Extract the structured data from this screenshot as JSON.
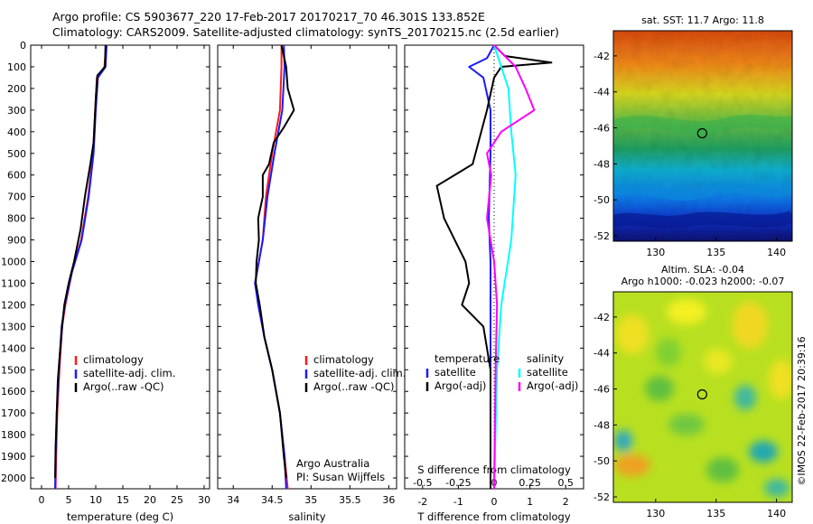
{
  "title_line1": "Argo profile: CS 5903677_220 17-Feb-2017 20170217_70 46.301S 133.852E",
  "title_line2": "Climatology: CARS2009. Satellite-adjusted climatology: synTS_20170215.nc (2.5d earlier)",
  "colors": {
    "climatology": "#ff1a1a",
    "satellite": "#1a1aff",
    "argo": "#000000",
    "sat_salinity": "#00ffff",
    "argo_salinity": "#ff00ff"
  },
  "chart_data": [
    {
      "type": "line",
      "panel": "temperature",
      "xlabel": "temperature (deg C)",
      "xlim": [
        -2,
        31
      ],
      "xticks": [
        "0",
        "5",
        "10",
        "15",
        "20",
        "25",
        "30"
      ],
      "ylim": [
        0,
        2050
      ],
      "yticks": [
        "0",
        "100",
        "200",
        "300",
        "400",
        "500",
        "600",
        "700",
        "800",
        "900",
        "1000",
        "1100",
        "1200",
        "1300",
        "1400",
        "1500",
        "1600",
        "1700",
        "1800",
        "1900",
        "2000"
      ],
      "legend": [
        "climatology",
        "satellite-adj. clim.",
        "Argo(..raw -QC)"
      ],
      "series": [
        {
          "name": "climatology",
          "points": [
            [
              11.9,
              0
            ],
            [
              11.6,
              100
            ],
            [
              10.2,
              150
            ],
            [
              9.9,
              300
            ],
            [
              9.5,
              500
            ],
            [
              8.6,
              700
            ],
            [
              7.3,
              900
            ],
            [
              5.6,
              1050
            ],
            [
              4.4,
              1200
            ],
            [
              3.8,
              1300
            ],
            [
              3.3,
              1500
            ],
            [
              2.9,
              1700
            ],
            [
              2.7,
              1900
            ],
            [
              2.6,
              2050
            ]
          ]
        },
        {
          "name": "satellite-adj. clim.",
          "points": [
            [
              12.0,
              0
            ],
            [
              11.8,
              100
            ],
            [
              10.4,
              150
            ],
            [
              10.0,
              300
            ],
            [
              9.6,
              500
            ],
            [
              8.7,
              700
            ],
            [
              7.4,
              900
            ],
            [
              5.6,
              1050
            ],
            [
              4.3,
              1200
            ],
            [
              3.7,
              1300
            ],
            [
              3.2,
              1500
            ],
            [
              2.8,
              1700
            ],
            [
              2.6,
              1900
            ],
            [
              2.5,
              2050
            ]
          ]
        },
        {
          "name": "Argo(..raw -QC)",
          "points": [
            [
              11.8,
              0
            ],
            [
              11.7,
              100
            ],
            [
              10.3,
              140
            ],
            [
              10.0,
              250
            ],
            [
              9.9,
              300
            ],
            [
              9.6,
              450
            ],
            [
              9.0,
              550
            ],
            [
              8.0,
              700
            ],
            [
              7.2,
              850
            ],
            [
              6.0,
              1000
            ],
            [
              5.0,
              1100
            ],
            [
              4.2,
              1200
            ],
            [
              3.8,
              1300
            ],
            [
              3.3,
              1450
            ],
            [
              3.0,
              1550
            ],
            [
              2.8,
              1700
            ],
            [
              2.6,
              1850
            ],
            [
              2.5,
              2000
            ]
          ]
        }
      ]
    },
    {
      "type": "line",
      "panel": "salinity",
      "xlabel": "salinity",
      "xlim": [
        33.8,
        36.1
      ],
      "xticks": [
        "34",
        "34.5",
        "35",
        "35.5",
        "36"
      ],
      "ylim": [
        0,
        2050
      ],
      "legend": [
        "climatology",
        "satellite-adj. clim.",
        "Argo(..raw -QC)"
      ],
      "annotation": [
        "Argo Australia",
        "PI: Susan Wijffels"
      ],
      "series": [
        {
          "name": "climatology",
          "points": [
            [
              34.62,
              0
            ],
            [
              34.62,
              100
            ],
            [
              34.6,
              300
            ],
            [
              34.5,
              500
            ],
            [
              34.42,
              700
            ],
            [
              34.38,
              900
            ],
            [
              34.33,
              1000
            ],
            [
              34.28,
              1100
            ],
            [
              34.33,
              1200
            ],
            [
              34.4,
              1350
            ],
            [
              34.5,
              1500
            ],
            [
              34.6,
              1700
            ],
            [
              34.66,
              1900
            ],
            [
              34.7,
              2050
            ]
          ]
        },
        {
          "name": "satellite-adj. clim.",
          "points": [
            [
              34.65,
              0
            ],
            [
              34.66,
              100
            ],
            [
              34.63,
              300
            ],
            [
              34.53,
              500
            ],
            [
              34.44,
              700
            ],
            [
              34.38,
              900
            ],
            [
              34.33,
              1000
            ],
            [
              34.28,
              1100
            ],
            [
              34.32,
              1200
            ],
            [
              34.4,
              1350
            ],
            [
              34.5,
              1500
            ],
            [
              34.6,
              1700
            ],
            [
              34.66,
              1900
            ],
            [
              34.68,
              2050
            ]
          ]
        },
        {
          "name": "Argo(..raw -QC)",
          "points": [
            [
              34.62,
              0
            ],
            [
              34.68,
              100
            ],
            [
              34.7,
              200
            ],
            [
              34.78,
              300
            ],
            [
              34.65,
              380
            ],
            [
              34.52,
              450
            ],
            [
              34.46,
              550
            ],
            [
              34.38,
              600
            ],
            [
              34.38,
              700
            ],
            [
              34.32,
              800
            ],
            [
              34.33,
              900
            ],
            [
              34.3,
              1000
            ],
            [
              34.29,
              1100
            ],
            [
              34.34,
              1200
            ],
            [
              34.4,
              1350
            ],
            [
              34.5,
              1500
            ],
            [
              34.6,
              1700
            ],
            [
              34.65,
              1900
            ],
            [
              34.68,
              2000
            ]
          ]
        }
      ]
    },
    {
      "type": "line",
      "panel": "difference",
      "xlabel": "T difference from climatology",
      "xlim": [
        -2.5,
        2.5
      ],
      "xticks": [
        "-2",
        "-1",
        "0",
        "1",
        "2"
      ],
      "top_label": "S difference from climatology",
      "top_ticks": [
        "-0.5",
        "-0.25",
        "0",
        "0.25",
        "0.5"
      ],
      "ylim": [
        0,
        2050
      ],
      "legend_temperature": [
        "temperature",
        "satellite",
        "Argo(-adj)"
      ],
      "legend_salinity": [
        "salinity",
        "satellite",
        "Argo(-adj)"
      ],
      "series": [
        {
          "name": "temperature satellite",
          "points": [
            [
              0.0,
              0
            ],
            [
              -0.2,
              60
            ],
            [
              -0.7,
              100
            ],
            [
              -0.3,
              150
            ],
            [
              -0.1,
              300
            ],
            [
              -0.1,
              500
            ],
            [
              -0.15,
              800
            ],
            [
              -0.1,
              1000
            ],
            [
              -0.1,
              1500
            ],
            [
              -0.1,
              2050
            ]
          ]
        },
        {
          "name": "temperature Argo(-adj)",
          "points": [
            [
              0.0,
              0
            ],
            [
              0.3,
              50
            ],
            [
              1.6,
              80
            ],
            [
              0.2,
              100
            ],
            [
              0.0,
              150
            ],
            [
              -0.2,
              300
            ],
            [
              -0.6,
              550
            ],
            [
              -1.6,
              650
            ],
            [
              -1.4,
              800
            ],
            [
              -1.1,
              900
            ],
            [
              -0.8,
              1000
            ],
            [
              -0.7,
              1100
            ],
            [
              -0.9,
              1200
            ],
            [
              -0.3,
              1300
            ],
            [
              -0.1,
              1500
            ],
            [
              -0.1,
              2050
            ]
          ]
        },
        {
          "name": "salinity satellite",
          "points": [
            [
              0.0,
              0
            ],
            [
              0.05,
              100
            ],
            [
              0.1,
              200
            ],
            [
              0.12,
              400
            ],
            [
              0.15,
              600
            ],
            [
              0.12,
              900
            ],
            [
              0.05,
              1200
            ],
            [
              0.02,
              1500
            ],
            [
              0.0,
              2050
            ]
          ]
        },
        {
          "name": "salinity Argo(-adj)",
          "points": [
            [
              0.0,
              0
            ],
            [
              0.15,
              100
            ],
            [
              0.22,
              200
            ],
            [
              0.28,
              300
            ],
            [
              0.05,
              400
            ],
            [
              -0.05,
              500
            ],
            [
              -0.02,
              600
            ],
            [
              -0.05,
              800
            ],
            [
              0.0,
              1000
            ],
            [
              0.02,
              1200
            ],
            [
              0.01,
              1500
            ],
            [
              0.0,
              2050
            ]
          ]
        }
      ]
    },
    {
      "type": "heatmap",
      "panel": "sst_map",
      "title": "sat. SST: 11.7 Argo: 11.8",
      "xticks": [
        "130",
        "135",
        "140"
      ],
      "yticks": [
        "-42",
        "-44",
        "-46",
        "-48",
        "-50",
        "-52"
      ],
      "xlim": [
        126.5,
        141.3
      ],
      "ylim": [
        -52.3,
        -40.6
      ],
      "marker": [
        133.85,
        -46.3
      ]
    },
    {
      "type": "heatmap",
      "panel": "sla_map",
      "title": "Altim. SLA: -0.04",
      "subtitle": "Argo h1000: -0.023 h2000: -0.07",
      "xticks": [
        "130",
        "135",
        "140"
      ],
      "yticks": [
        "-42",
        "-44",
        "-46",
        "-48",
        "-50",
        "-52"
      ],
      "xlim": [
        126.5,
        141.3
      ],
      "ylim": [
        -52.3,
        -40.6
      ],
      "marker": [
        133.85,
        -46.3
      ]
    }
  ],
  "side_label": "©IMOS 22-Feb-2017 20:39:16"
}
